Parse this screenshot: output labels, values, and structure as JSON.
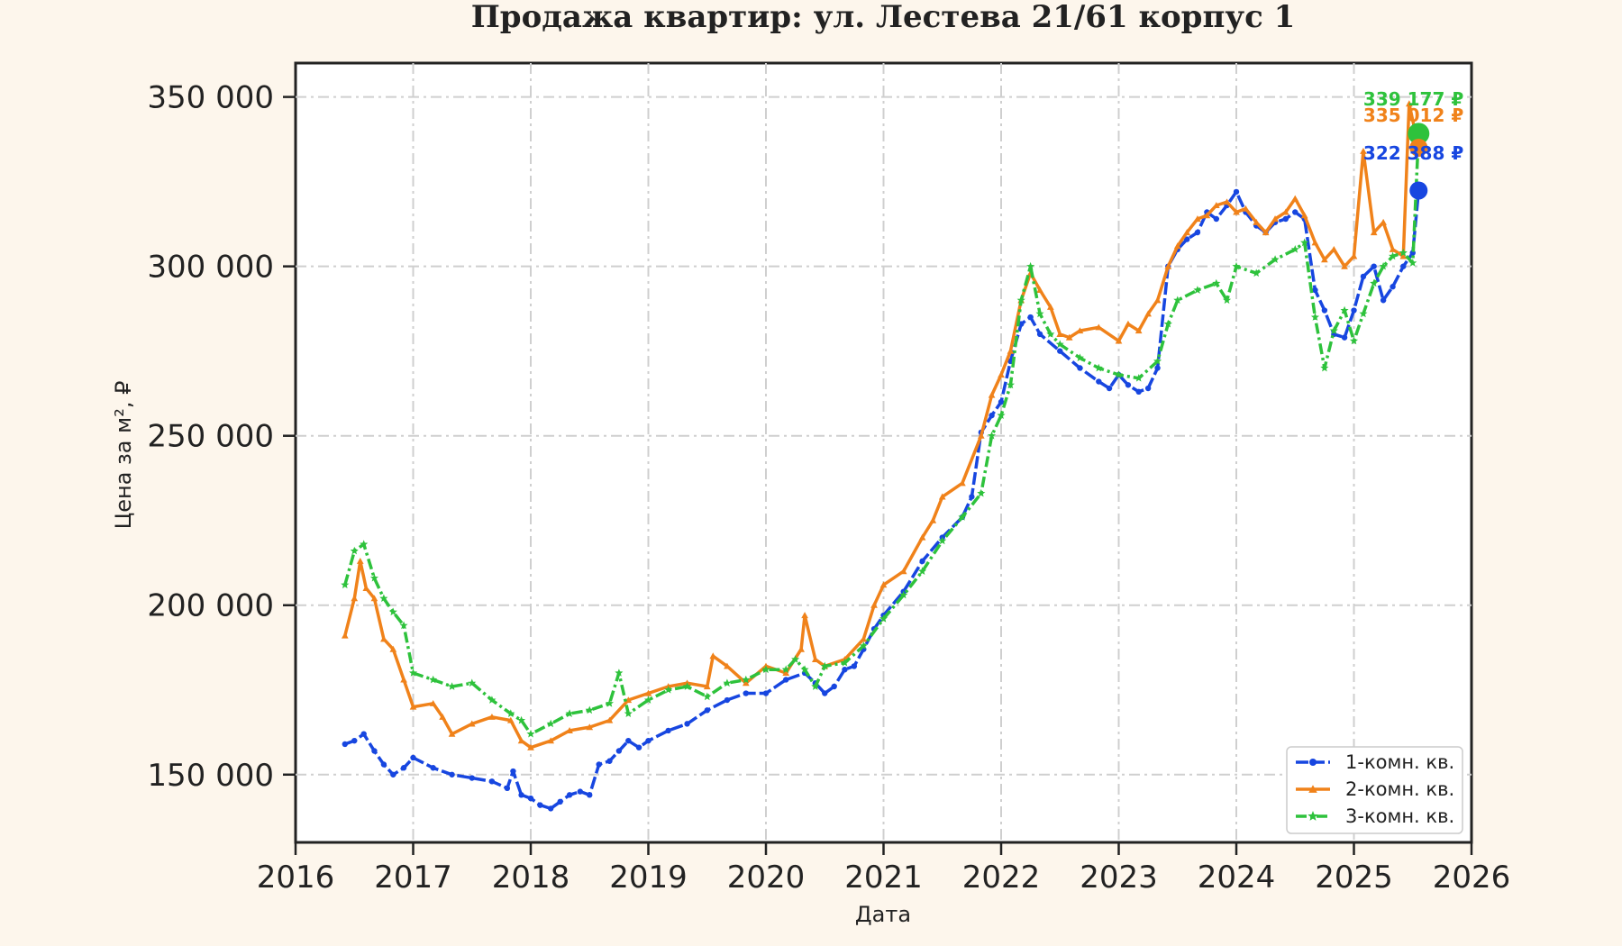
{
  "chart_data": {
    "type": "line",
    "title": "Продажа квартир: ул. Лестева 21/61 корпус 1",
    "xlabel": "Дата",
    "ylabel": "Цена за м², ₽",
    "xlim": [
      2016,
      2026
    ],
    "ylim": [
      130000,
      360000
    ],
    "x_ticks": [
      "2016",
      "2017",
      "2018",
      "2019",
      "2020",
      "2021",
      "2022",
      "2023",
      "2024",
      "2025",
      "2026"
    ],
    "y_ticks": [
      "150 000",
      "200 000",
      "250 000",
      "300 000",
      "350 000"
    ],
    "y_tick_values": [
      150000,
      200000,
      250000,
      300000,
      350000
    ],
    "grid": true,
    "legend_position": "bottom-right",
    "series": [
      {
        "name": "1-комн. кв.",
        "color": "#1746e0",
        "marker": "circle",
        "x": [
          2016.42,
          2016.5,
          2016.58,
          2016.67,
          2016.75,
          2016.83,
          2016.92,
          2017.0,
          2017.17,
          2017.33,
          2017.5,
          2017.67,
          2017.8,
          2017.85,
          2017.92,
          2018.0,
          2018.08,
          2018.17,
          2018.25,
          2018.33,
          2018.42,
          2018.5,
          2018.58,
          2018.67,
          2018.75,
          2018.83,
          2018.92,
          2019.0,
          2019.17,
          2019.33,
          2019.5,
          2019.67,
          2019.83,
          2020.0,
          2020.17,
          2020.33,
          2020.42,
          2020.5,
          2020.58,
          2020.67,
          2020.75,
          2020.83,
          2020.92,
          2021.0,
          2021.17,
          2021.33,
          2021.5,
          2021.67,
          2021.75,
          2021.83,
          2021.92,
          2022.0,
          2022.08,
          2022.17,
          2022.25,
          2022.33,
          2022.5,
          2022.67,
          2022.83,
          2022.92,
          2023.0,
          2023.08,
          2023.17,
          2023.25,
          2023.33,
          2023.42,
          2023.5,
          2023.58,
          2023.67,
          2023.75,
          2023.83,
          2023.92,
          2024.0,
          2024.08,
          2024.17,
          2024.25,
          2024.33,
          2024.42,
          2024.5,
          2024.58,
          2024.67,
          2024.75,
          2024.83,
          2024.92,
          2025.0,
          2025.08,
          2025.17,
          2025.25,
          2025.33,
          2025.42,
          2025.5,
          2025.55
        ],
        "values": [
          159000,
          160000,
          162000,
          157000,
          153000,
          150000,
          152000,
          155000,
          152000,
          150000,
          149000,
          148000,
          146000,
          151000,
          144000,
          143000,
          141000,
          140000,
          142000,
          144000,
          145000,
          144000,
          153000,
          154000,
          157000,
          160000,
          158000,
          160000,
          163000,
          165000,
          169000,
          172000,
          174000,
          174000,
          178000,
          180000,
          177000,
          174000,
          176000,
          181000,
          182000,
          187000,
          193000,
          197000,
          204000,
          213000,
          220000,
          226000,
          232000,
          251000,
          256000,
          260000,
          272000,
          283000,
          285000,
          280000,
          275000,
          270000,
          266000,
          264000,
          268000,
          265000,
          263000,
          264000,
          270000,
          300000,
          305000,
          308000,
          310000,
          316000,
          314000,
          318000,
          322000,
          316000,
          312000,
          310000,
          313000,
          314000,
          316000,
          314000,
          293000,
          287000,
          280000,
          279000,
          287000,
          297000,
          300000,
          290000,
          294000,
          300000,
          304000,
          322388
        ]
      },
      {
        "name": "2-комн. кв.",
        "color": "#f0821a",
        "marker": "triangle",
        "x": [
          2016.42,
          2016.5,
          2016.55,
          2016.6,
          2016.67,
          2016.75,
          2016.83,
          2016.92,
          2017.0,
          2017.17,
          2017.25,
          2017.33,
          2017.5,
          2017.67,
          2017.83,
          2017.92,
          2018.0,
          2018.17,
          2018.33,
          2018.5,
          2018.67,
          2018.83,
          2019.0,
          2019.17,
          2019.33,
          2019.5,
          2019.55,
          2019.67,
          2019.83,
          2020.0,
          2020.17,
          2020.3,
          2020.33,
          2020.42,
          2020.5,
          2020.67,
          2020.83,
          2020.92,
          2021.0,
          2021.17,
          2021.33,
          2021.42,
          2021.5,
          2021.67,
          2021.83,
          2021.92,
          2022.0,
          2022.08,
          2022.17,
          2022.25,
          2022.33,
          2022.42,
          2022.5,
          2022.58,
          2022.67,
          2022.83,
          2023.0,
          2023.08,
          2023.17,
          2023.25,
          2023.33,
          2023.42,
          2023.5,
          2023.58,
          2023.67,
          2023.75,
          2023.83,
          2023.92,
          2024.0,
          2024.08,
          2024.17,
          2024.25,
          2024.33,
          2024.42,
          2024.5,
          2024.58,
          2024.67,
          2024.75,
          2024.83,
          2024.92,
          2025.0,
          2025.08,
          2025.17,
          2025.25,
          2025.33,
          2025.42,
          2025.47,
          2025.55
        ],
        "values": [
          191000,
          202000,
          213000,
          205000,
          202000,
          190000,
          187000,
          178000,
          170000,
          171000,
          167000,
          162000,
          165000,
          167000,
          166000,
          160000,
          158000,
          160000,
          163000,
          164000,
          166000,
          172000,
          174000,
          176000,
          177000,
          176000,
          185000,
          182000,
          177000,
          182000,
          180000,
          187000,
          197000,
          184000,
          182000,
          184000,
          190000,
          200000,
          206000,
          210000,
          220000,
          225000,
          232000,
          236000,
          250000,
          262000,
          268000,
          275000,
          290000,
          298000,
          293000,
          288000,
          280000,
          279000,
          281000,
          282000,
          278000,
          283000,
          281000,
          286000,
          290000,
          300000,
          306000,
          310000,
          314000,
          315000,
          318000,
          319000,
          316000,
          317000,
          313000,
          310000,
          314000,
          316000,
          320000,
          315000,
          307000,
          302000,
          305000,
          300000,
          303000,
          334000,
          310000,
          313000,
          305000,
          303000,
          348000,
          335012
        ]
      },
      {
        "name": "3-комн. кв.",
        "color": "#2ec23c",
        "marker": "star",
        "x": [
          2016.42,
          2016.5,
          2016.58,
          2016.67,
          2016.75,
          2016.83,
          2016.92,
          2017.0,
          2017.17,
          2017.33,
          2017.5,
          2017.67,
          2017.83,
          2017.92,
          2018.0,
          2018.17,
          2018.33,
          2018.5,
          2018.67,
          2018.75,
          2018.83,
          2019.0,
          2019.17,
          2019.33,
          2019.5,
          2019.67,
          2019.83,
          2020.0,
          2020.17,
          2020.25,
          2020.33,
          2020.42,
          2020.5,
          2020.67,
          2020.83,
          2021.0,
          2021.17,
          2021.33,
          2021.5,
          2021.67,
          2021.83,
          2021.92,
          2022.0,
          2022.08,
          2022.17,
          2022.25,
          2022.33,
          2022.42,
          2022.5,
          2022.67,
          2022.83,
          2023.0,
          2023.17,
          2023.33,
          2023.42,
          2023.5,
          2023.67,
          2023.83,
          2023.92,
          2024.0,
          2024.17,
          2024.33,
          2024.5,
          2024.58,
          2024.67,
          2024.75,
          2024.83,
          2024.92,
          2025.0,
          2025.08,
          2025.17,
          2025.25,
          2025.33,
          2025.42,
          2025.5,
          2025.55
        ],
        "values": [
          206000,
          216000,
          218000,
          208000,
          202000,
          198000,
          194000,
          180000,
          178000,
          176000,
          177000,
          172000,
          168000,
          166000,
          162000,
          165000,
          168000,
          169000,
          171000,
          180000,
          168000,
          172000,
          175000,
          176000,
          173000,
          177000,
          178000,
          181000,
          181000,
          184000,
          181000,
          176000,
          182000,
          183000,
          188000,
          196000,
          203000,
          210000,
          219000,
          226000,
          233000,
          250000,
          256000,
          265000,
          290000,
          300000,
          286000,
          280000,
          277000,
          273000,
          270000,
          268000,
          267000,
          272000,
          283000,
          290000,
          293000,
          295000,
          290000,
          300000,
          298000,
          302000,
          305000,
          307000,
          285000,
          270000,
          281000,
          287000,
          278000,
          286000,
          295000,
          300000,
          303000,
          304000,
          301000,
          339177
        ]
      }
    ],
    "end_labels": [
      {
        "series": "3-комн. кв.",
        "text": "339 177 ₽",
        "color": "#2ec23c",
        "value": 339177
      },
      {
        "series": "2-комн. кв.",
        "text": "335 012 ₽",
        "color": "#f0821a",
        "value": 335012
      },
      {
        "series": "1-комн. кв.",
        "text": "322 388 ₽",
        "color": "#1746e0",
        "value": 322388
      }
    ]
  }
}
